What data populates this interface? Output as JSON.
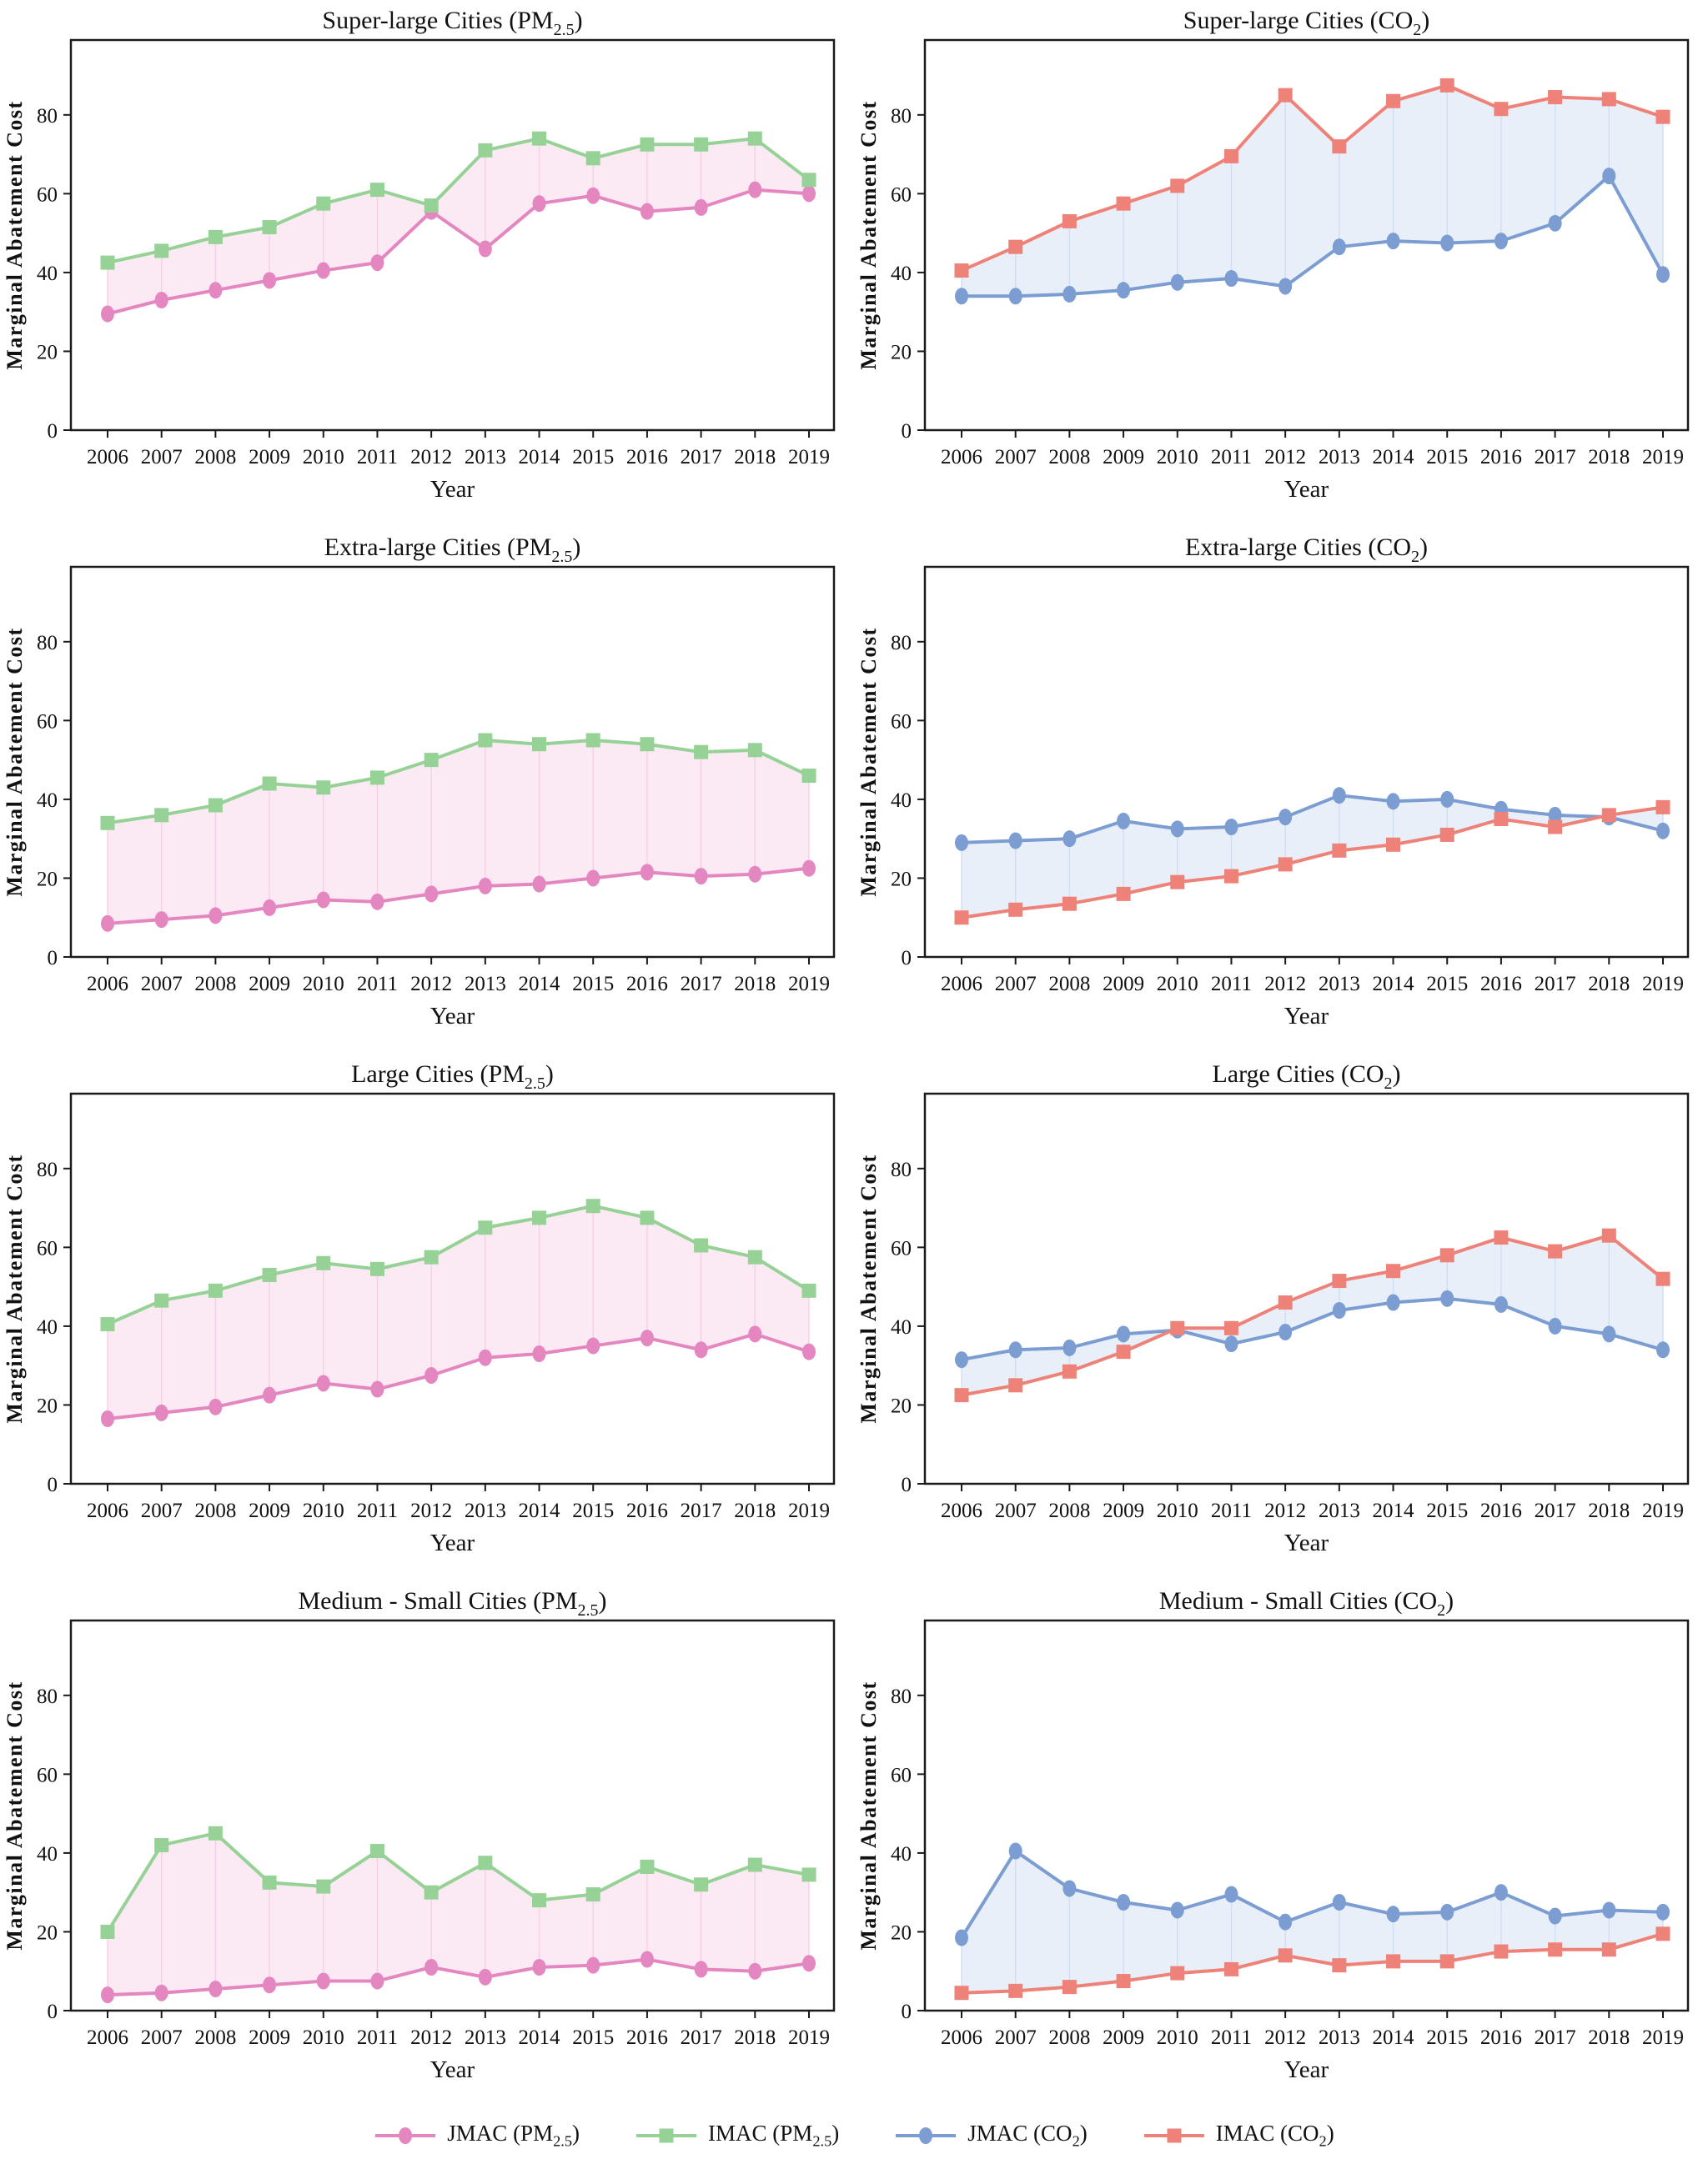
{
  "page": {
    "xlabel": "Year",
    "ylabel": "Marginal Abatement Cost",
    "years": [
      "2006",
      "2007",
      "2008",
      "2009",
      "2010",
      "2011",
      "2012",
      "2013",
      "2014",
      "2015",
      "2016",
      "2017",
      "2018",
      "2019"
    ],
    "yticks": [
      0,
      20,
      40,
      60,
      80
    ],
    "ylim": [
      0,
      99
    ]
  },
  "colors": {
    "jmac_pm": "#e487c0",
    "imac_pm": "#96d296",
    "jmac_co2": "#7b9dd2",
    "imac_co2": "#ee8278",
    "fill_pm": "#fbe9f4",
    "fill_co2": "#e8eff8",
    "vline_pm": "#f5cfe7",
    "vline_co2": "#cfdef0",
    "axis": "#1a1a1a",
    "text": "#111111"
  },
  "legend": [
    {
      "marker": "circle",
      "color_key": "jmac_pm",
      "parts": [
        {
          "t": "JMAC (PM"
        },
        {
          "t": "2.5",
          "sub": true
        },
        {
          "t": ")"
        }
      ]
    },
    {
      "marker": "square",
      "color_key": "imac_pm",
      "parts": [
        {
          "t": "IMAC (PM"
        },
        {
          "t": "2.5",
          "sub": true
        },
        {
          "t": ")"
        }
      ]
    },
    {
      "marker": "circle",
      "color_key": "jmac_co2",
      "parts": [
        {
          "t": "JMAC (CO"
        },
        {
          "t": "2",
          "sub": true
        },
        {
          "t": ")"
        }
      ]
    },
    {
      "marker": "square",
      "color_key": "imac_co2",
      "parts": [
        {
          "t": "IMAC (CO"
        },
        {
          "t": "2",
          "sub": true
        },
        {
          "t": ")"
        }
      ]
    }
  ],
  "chart_data": [
    {
      "type": "line",
      "title_parts": [
        {
          "t": "Super-large Cities (PM"
        },
        {
          "t": "2.5",
          "sub": true
        },
        {
          "t": ")"
        }
      ],
      "xlabel": "Year",
      "ylabel": "Marginal Abatement Cost",
      "ylim": [
        0,
        99
      ],
      "yticks": [
        0,
        20,
        40,
        60,
        80
      ],
      "fill_key": "fill_pm",
      "vline_key": "vline_pm",
      "series": [
        {
          "name": "JMAC (PM2.5)",
          "marker": "circle",
          "color_key": "jmac_pm",
          "values": [
            29.5,
            33,
            35.5,
            38,
            40.5,
            42.5,
            55.5,
            46,
            57.5,
            59.5,
            55.5,
            56.5,
            61,
            60
          ]
        },
        {
          "name": "IMAC (PM2.5)",
          "marker": "square",
          "color_key": "imac_pm",
          "values": [
            42.5,
            45.5,
            49,
            51.5,
            57.5,
            61,
            57,
            71,
            74,
            69,
            72.5,
            72.5,
            74,
            63.5
          ]
        }
      ]
    },
    {
      "type": "line",
      "title_parts": [
        {
          "t": "Super-large Cities (CO"
        },
        {
          "t": "2",
          "sub": true
        },
        {
          "t": ")"
        }
      ],
      "xlabel": "Year",
      "ylabel": "Marginal Abatement Cost",
      "ylim": [
        0,
        99
      ],
      "yticks": [
        0,
        20,
        40,
        60,
        80
      ],
      "fill_key": "fill_co2",
      "vline_key": "vline_co2",
      "series": [
        {
          "name": "JMAC (CO2)",
          "marker": "circle",
          "color_key": "jmac_co2",
          "values": [
            34,
            34,
            34.5,
            35.5,
            37.5,
            38.5,
            36.5,
            46.5,
            48,
            47.5,
            48,
            52.5,
            64.5,
            39.5
          ]
        },
        {
          "name": "IMAC (CO2)",
          "marker": "square",
          "color_key": "imac_co2",
          "values": [
            40.5,
            46.5,
            53,
            57.5,
            62,
            69.5,
            85,
            72,
            83.5,
            87.5,
            81.5,
            84.5,
            84,
            79.5
          ]
        }
      ]
    },
    {
      "type": "line",
      "title_parts": [
        {
          "t": "Extra-large Cities (PM"
        },
        {
          "t": "2.5",
          "sub": true
        },
        {
          "t": ")"
        }
      ],
      "xlabel": "Year",
      "ylabel": "Marginal Abatement Cost",
      "ylim": [
        0,
        99
      ],
      "yticks": [
        0,
        20,
        40,
        60,
        80
      ],
      "fill_key": "fill_pm",
      "vline_key": "vline_pm",
      "series": [
        {
          "name": "JMAC (PM2.5)",
          "marker": "circle",
          "color_key": "jmac_pm",
          "values": [
            8.5,
            9.5,
            10.5,
            12.5,
            14.5,
            14,
            16,
            18,
            18.5,
            20,
            21.5,
            20.5,
            21,
            22.5
          ]
        },
        {
          "name": "IMAC (PM2.5)",
          "marker": "square",
          "color_key": "imac_pm",
          "values": [
            34,
            36,
            38.5,
            44,
            43,
            45.5,
            50,
            55,
            54,
            55,
            54,
            52,
            52.5,
            46
          ]
        }
      ]
    },
    {
      "type": "line",
      "title_parts": [
        {
          "t": "Extra-large Cities (CO"
        },
        {
          "t": "2",
          "sub": true
        },
        {
          "t": ")"
        }
      ],
      "xlabel": "Year",
      "ylabel": "Marginal Abatement Cost",
      "ylim": [
        0,
        99
      ],
      "yticks": [
        0,
        20,
        40,
        60,
        80
      ],
      "fill_key": "fill_co2",
      "vline_key": "vline_co2",
      "series": [
        {
          "name": "JMAC (CO2)",
          "marker": "circle",
          "color_key": "jmac_co2",
          "values": [
            29,
            29.5,
            30,
            34.5,
            32.5,
            33,
            35.5,
            41,
            39.5,
            40,
            37.5,
            36,
            35.5,
            32
          ]
        },
        {
          "name": "IMAC (CO2)",
          "marker": "square",
          "color_key": "imac_co2",
          "values": [
            10,
            12,
            13.5,
            16,
            19,
            20.5,
            23.5,
            27,
            28.5,
            31,
            35,
            33,
            36,
            38
          ]
        }
      ]
    },
    {
      "type": "line",
      "title_parts": [
        {
          "t": "Large Cities (PM"
        },
        {
          "t": "2.5",
          "sub": true
        },
        {
          "t": ")"
        }
      ],
      "xlabel": "Year",
      "ylabel": "Marginal Abatement Cost",
      "ylim": [
        0,
        99
      ],
      "yticks": [
        0,
        20,
        40,
        60,
        80
      ],
      "fill_key": "fill_pm",
      "vline_key": "vline_pm",
      "series": [
        {
          "name": "JMAC (PM2.5)",
          "marker": "circle",
          "color_key": "jmac_pm",
          "values": [
            16.5,
            18,
            19.5,
            22.5,
            25.5,
            24,
            27.5,
            32,
            33,
            35,
            37,
            34,
            38,
            33.5
          ]
        },
        {
          "name": "IMAC (PM2.5)",
          "marker": "square",
          "color_key": "imac_pm",
          "values": [
            40.5,
            46.5,
            49,
            53,
            56,
            54.5,
            57.5,
            65,
            67.5,
            70.5,
            67.5,
            60.5,
            57.5,
            49
          ]
        }
      ]
    },
    {
      "type": "line",
      "title_parts": [
        {
          "t": "Large Cities (CO"
        },
        {
          "t": "2",
          "sub": true
        },
        {
          "t": ")"
        }
      ],
      "xlabel": "Year",
      "ylabel": "Marginal Abatement Cost",
      "ylim": [
        0,
        99
      ],
      "yticks": [
        0,
        20,
        40,
        60,
        80
      ],
      "fill_key": "fill_co2",
      "vline_key": "vline_co2",
      "series": [
        {
          "name": "JMAC (CO2)",
          "marker": "circle",
          "color_key": "jmac_co2",
          "values": [
            31.5,
            34,
            34.5,
            38,
            39,
            35.5,
            38.5,
            44,
            46,
            47,
            45.5,
            40,
            38,
            34
          ]
        },
        {
          "name": "IMAC (CO2)",
          "marker": "square",
          "color_key": "imac_co2",
          "values": [
            22.5,
            25,
            28.5,
            33.5,
            39.5,
            39.5,
            46,
            51.5,
            54,
            58,
            62.5,
            59,
            63,
            52
          ]
        }
      ]
    },
    {
      "type": "line",
      "title_parts": [
        {
          "t": "Medium - Small Cities (PM"
        },
        {
          "t": "2.5",
          "sub": true
        },
        {
          "t": ")"
        }
      ],
      "xlabel": "Year",
      "ylabel": "Marginal Abatement Cost",
      "ylim": [
        0,
        99
      ],
      "yticks": [
        0,
        20,
        40,
        60,
        80
      ],
      "fill_key": "fill_pm",
      "vline_key": "vline_pm",
      "series": [
        {
          "name": "JMAC (PM2.5)",
          "marker": "circle",
          "color_key": "jmac_pm",
          "values": [
            4,
            4.5,
            5.5,
            6.5,
            7.5,
            7.5,
            11,
            8.5,
            11,
            11.5,
            13,
            10.5,
            10,
            12
          ]
        },
        {
          "name": "IMAC (PM2.5)",
          "marker": "square",
          "color_key": "imac_pm",
          "values": [
            20,
            42,
            45,
            32.5,
            31.5,
            40.5,
            30,
            37.5,
            28,
            29.5,
            36.5,
            32,
            37,
            34.5
          ]
        }
      ]
    },
    {
      "type": "line",
      "title_parts": [
        {
          "t": "Medium - Small Cities (CO"
        },
        {
          "t": "2",
          "sub": true
        },
        {
          "t": ")"
        }
      ],
      "xlabel": "Year",
      "ylabel": "Marginal Abatement Cost",
      "ylim": [
        0,
        99
      ],
      "yticks": [
        0,
        20,
        40,
        60,
        80
      ],
      "fill_key": "fill_co2",
      "vline_key": "vline_co2",
      "series": [
        {
          "name": "JMAC (CO2)",
          "marker": "circle",
          "color_key": "jmac_co2",
          "values": [
            18.5,
            40.5,
            31,
            27.5,
            25.5,
            29.5,
            22.5,
            27.5,
            24.5,
            25,
            30,
            24,
            25.5,
            25
          ]
        },
        {
          "name": "IMAC (CO2)",
          "marker": "square",
          "color_key": "imac_co2",
          "values": [
            4.5,
            5,
            6,
            7.5,
            9.5,
            10.5,
            14,
            11.5,
            12.5,
            12.5,
            15,
            15.5,
            15.5,
            19.5
          ]
        }
      ]
    }
  ]
}
